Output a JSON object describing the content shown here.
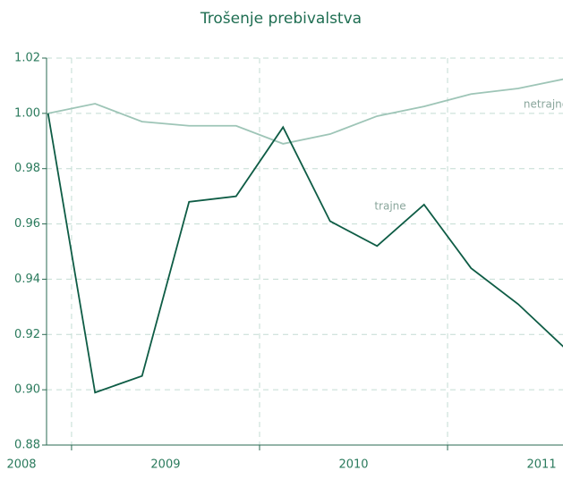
{
  "chart_data": {
    "type": "line",
    "title": "Trošenje prebivalstva",
    "x": [
      2008.875,
      2009.125,
      2009.375,
      2009.625,
      2009.875,
      2010.125,
      2010.375,
      2010.625,
      2010.875,
      2011.125,
      2011.375,
      2011.625
    ],
    "xlim": [
      2008.867,
      2011.614
    ],
    "xticks": [
      2009,
      2010,
      2011
    ],
    "year_labels": [
      {
        "value": 2008.5,
        "label": "2008"
      },
      {
        "value": 2009.5,
        "label": "2009"
      },
      {
        "value": 2010.5,
        "label": "2010"
      },
      {
        "value": 2011.5,
        "label": "2011"
      }
    ],
    "ylim": [
      0.88,
      1.02
    ],
    "yticks": [
      0.88,
      {
        "value": 0.9,
        "label": "0.90"
      },
      0.92,
      0.94,
      0.96,
      0.98,
      {
        "value": 1.0,
        "label": "1.00"
      },
      1.02
    ],
    "grid": true,
    "series": [
      {
        "name": "netrajne",
        "color": "#9ec5b7",
        "values": [
          1.0,
          1.0035,
          0.997,
          0.9955,
          0.9955,
          0.989,
          0.9925,
          0.999,
          1.0025,
          1.007,
          1.009,
          1.0125
        ]
      },
      {
        "name": "trajne",
        "color": "#0e5c45",
        "values": [
          1.0,
          0.899,
          0.905,
          0.968,
          0.97,
          0.995,
          0.961,
          0.952,
          0.967,
          0.944,
          0.931,
          0.915
        ]
      }
    ]
  }
}
